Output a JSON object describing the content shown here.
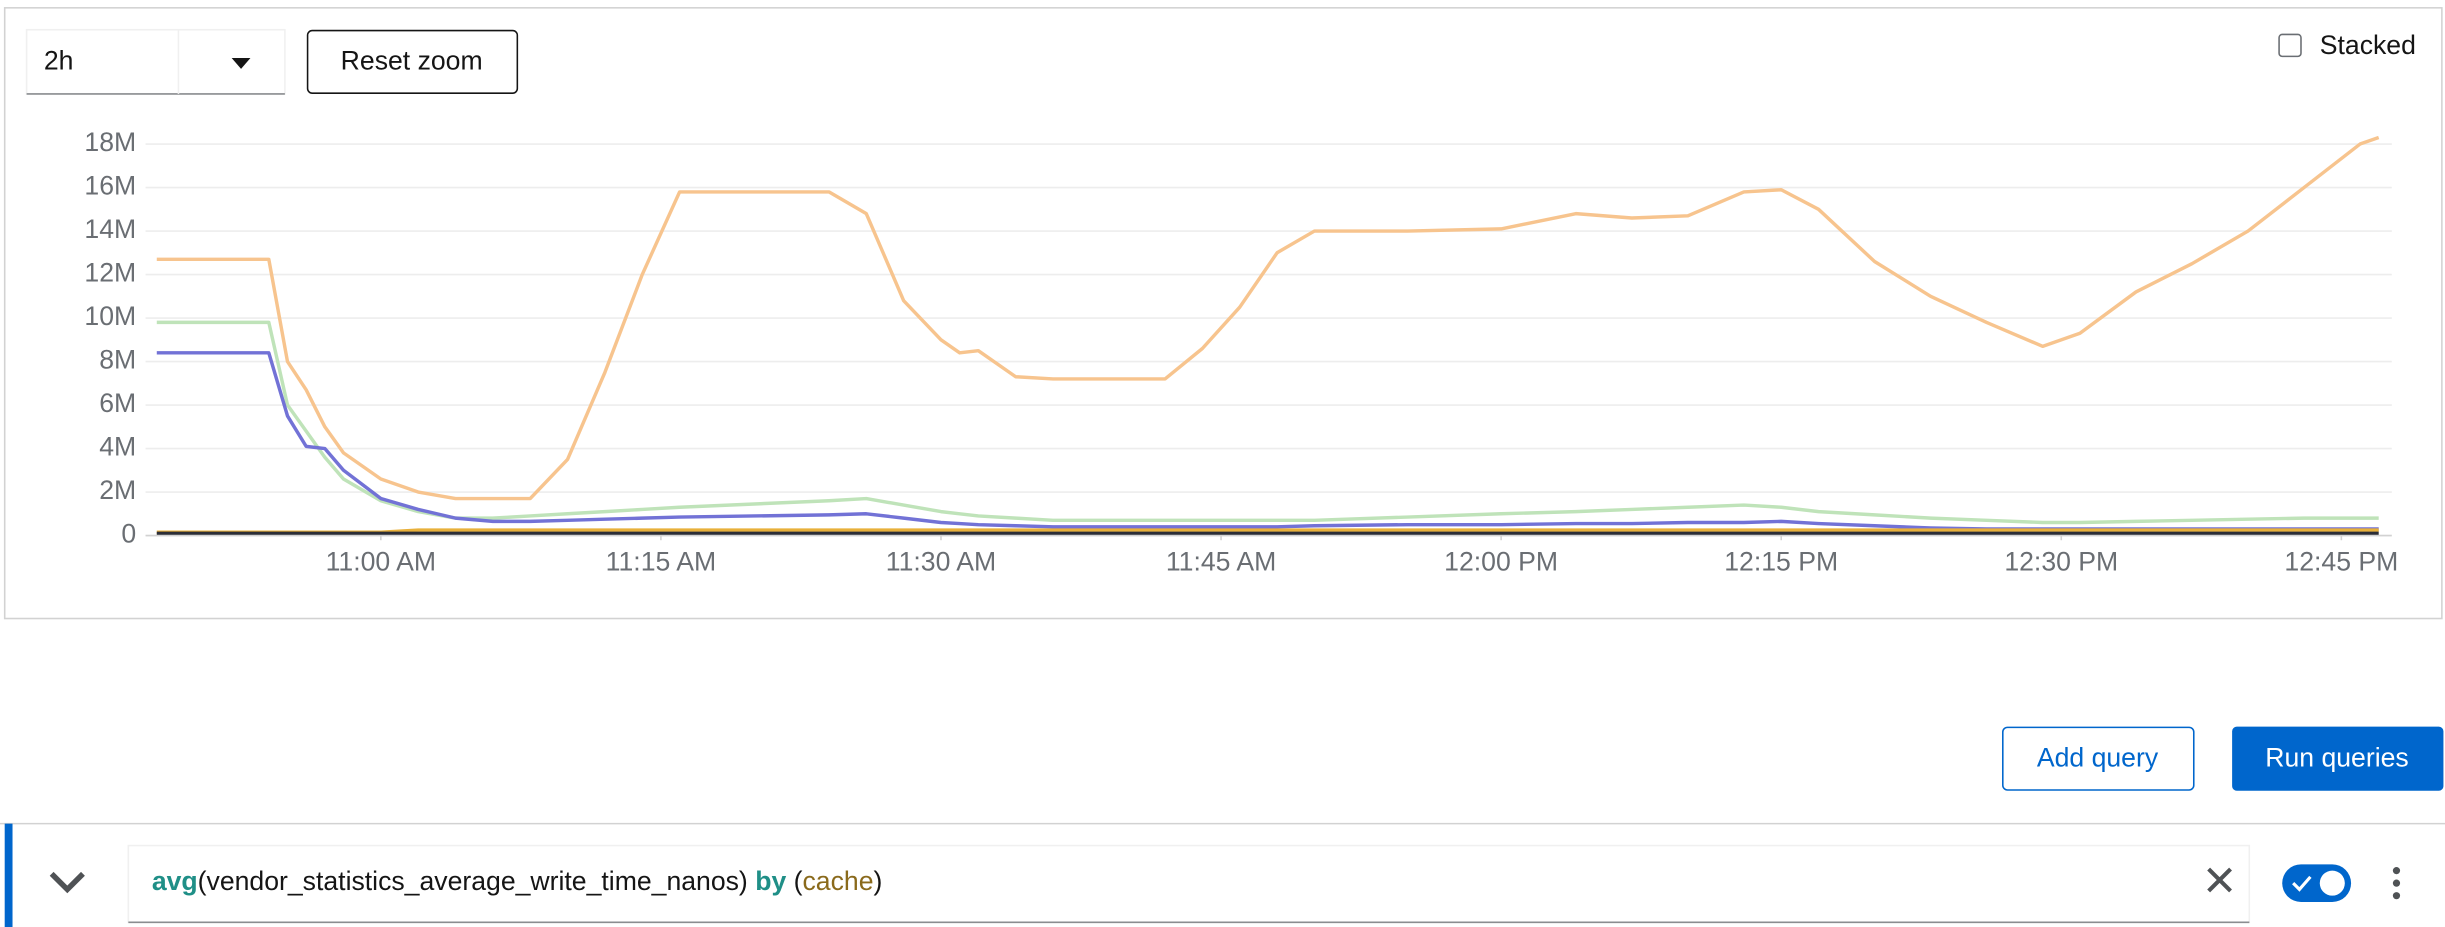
{
  "toolbar": {
    "range": "2h",
    "reset_zoom": "Reset zoom",
    "stacked": "Stacked"
  },
  "chart_data": {
    "type": "line",
    "x": [
      648,
      652,
      654,
      655,
      656,
      657,
      658,
      660,
      662,
      664,
      666,
      668,
      670,
      672,
      674,
      676,
      680,
      684,
      686,
      688,
      690,
      691,
      692,
      694,
      696,
      700,
      702,
      704,
      706,
      708,
      710,
      715,
      720,
      724,
      727,
      730,
      733,
      735,
      737,
      740,
      743,
      746,
      749,
      751,
      754,
      757,
      760,
      763,
      766,
      767
    ],
    "xlim": [
      647.4,
      767.7
    ],
    "xticks": [
      {
        "value": 660,
        "label": "11:00 AM"
      },
      {
        "value": 675,
        "label": "11:15 AM"
      },
      {
        "value": 690,
        "label": "11:30 AM"
      },
      {
        "value": 705,
        "label": "11:45 AM"
      },
      {
        "value": 720,
        "label": "12:00 PM"
      },
      {
        "value": 735,
        "label": "12:15 PM"
      },
      {
        "value": 750,
        "label": "12:30 PM"
      },
      {
        "value": 765,
        "label": "12:45 PM"
      }
    ],
    "ylim": [
      0,
      18000000
    ],
    "yticks": [
      0,
      {
        "value": 2000000,
        "label": "2M"
      },
      {
        "value": 4000000,
        "label": "4M"
      },
      {
        "value": 6000000,
        "label": "6M"
      },
      {
        "value": 8000000,
        "label": "8M"
      },
      {
        "value": 10000000,
        "label": "10M"
      },
      {
        "value": 12000000,
        "label": "12M"
      },
      {
        "value": 14000000,
        "label": "14M"
      },
      {
        "value": 16000000,
        "label": "16M"
      },
      {
        "value": 18000000,
        "label": "18M"
      }
    ],
    "grid": true,
    "series": [
      {
        "color": "#bfe3b9",
        "values": [
          9800000,
          9800000,
          9800000,
          6000000,
          4800000,
          3600000,
          2600000,
          1600000,
          1100000,
          800000,
          800000,
          900000,
          1000000,
          1100000,
          1200000,
          1300000,
          1450000,
          1600000,
          1700000,
          1400000,
          1100000,
          1000000,
          900000,
          800000,
          700000,
          700000,
          700000,
          700000,
          700000,
          700000,
          700000,
          850000,
          1000000,
          1100000,
          1200000,
          1300000,
          1400000,
          1300000,
          1100000,
          950000,
          800000,
          700000,
          600000,
          600000,
          650000,
          700000,
          750000,
          800000,
          800000,
          800000
        ]
      },
      {
        "color": "#7272d6",
        "values": [
          8400000,
          8400000,
          8400000,
          5500000,
          4100000,
          4000000,
          3000000,
          1700000,
          1200000,
          800000,
          650000,
          650000,
          700000,
          750000,
          800000,
          850000,
          900000,
          950000,
          1000000,
          800000,
          600000,
          550000,
          500000,
          450000,
          400000,
          400000,
          400000,
          400000,
          400000,
          400000,
          450000,
          500000,
          500000,
          550000,
          550000,
          600000,
          600000,
          650000,
          550000,
          450000,
          350000,
          300000,
          300000,
          300000,
          300000,
          300000,
          300000,
          300000,
          300000,
          300000
        ]
      },
      {
        "color": "#f7c48e",
        "values": [
          12700000,
          12700000,
          12700000,
          8000000,
          6700000,
          5000000,
          3800000,
          2600000,
          2000000,
          1700000,
          1700000,
          1700000,
          3500000,
          7500000,
          12000000,
          15800000,
          15800000,
          15800000,
          14800000,
          10800000,
          9000000,
          8400000,
          8500000,
          7300000,
          7200000,
          7200000,
          7200000,
          8600000,
          10500000,
          13000000,
          14000000,
          14000000,
          14100000,
          14800000,
          14600000,
          14700000,
          15800000,
          15900000,
          15000000,
          12600000,
          11000000,
          9800000,
          8700000,
          9300000,
          11200000,
          12500000,
          14000000,
          16000000,
          18000000,
          18300000
        ]
      },
      {
        "color": "#e8b03a",
        "values": [
          150000,
          150000,
          150000,
          150000,
          150000,
          150000,
          150000,
          150000,
          250000,
          250000,
          250000,
          250000,
          250000,
          250000,
          250000,
          250000,
          250000,
          250000,
          250000,
          250000,
          250000,
          250000,
          250000,
          250000,
          250000,
          250000,
          250000,
          250000,
          250000,
          250000,
          250000,
          250000,
          250000,
          250000,
          250000,
          250000,
          250000,
          250000,
          250000,
          250000,
          250000,
          250000,
          250000,
          250000,
          250000,
          250000,
          250000,
          250000,
          250000,
          250000
        ]
      },
      {
        "color": "#2b2d36",
        "values": [
          100000,
          100000,
          100000,
          100000,
          100000,
          100000,
          100000,
          100000,
          100000,
          100000,
          100000,
          100000,
          100000,
          100000,
          100000,
          100000,
          100000,
          100000,
          100000,
          100000,
          100000,
          100000,
          100000,
          100000,
          100000,
          100000,
          100000,
          100000,
          100000,
          100000,
          100000,
          100000,
          100000,
          100000,
          100000,
          100000,
          100000,
          100000,
          100000,
          100000,
          100000,
          100000,
          100000,
          100000,
          100000,
          100000,
          100000,
          100000,
          100000,
          100000
        ]
      }
    ]
  },
  "buttons": {
    "add_query": "Add query",
    "run_queries": "Run queries"
  },
  "query": {
    "tokens": [
      {
        "text": "avg",
        "color": "#1f8f87",
        "bold": true
      },
      {
        "text": "(vendor_statistics_average_write_time_nanos) ",
        "color": "#151515",
        "bold": false
      },
      {
        "text": "by",
        "color": "#1f8f87",
        "bold": true
      },
      {
        "text": " (",
        "color": "#151515",
        "bold": false
      },
      {
        "text": "cache",
        "color": "#8a6a1c",
        "bold": false
      },
      {
        "text": ")",
        "color": "#151515",
        "bold": false
      }
    ]
  }
}
